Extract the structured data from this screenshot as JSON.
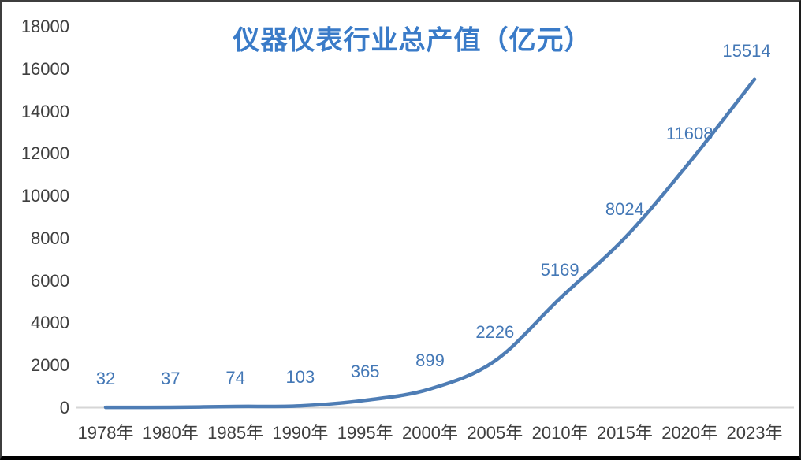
{
  "chart_data": {
    "type": "line",
    "title": "仪器仪表行业总产值（亿元）",
    "categories": [
      "1978年",
      "1980年",
      "1985年",
      "1990年",
      "1995年",
      "2000年",
      "2005年",
      "2010年",
      "2015年",
      "2020年",
      "2023年"
    ],
    "values": [
      32,
      37,
      74,
      103,
      365,
      899,
      2226,
      5169,
      8024,
      11608,
      15514
    ],
    "data_labels": [
      "32",
      "37",
      "74",
      "103",
      "365",
      "899",
      "2226",
      "5169",
      "8024",
      "11608",
      "15514"
    ],
    "y_ticks": [
      0,
      2000,
      4000,
      6000,
      8000,
      10000,
      12000,
      14000,
      16000,
      18000
    ],
    "ylim": [
      0,
      18000
    ],
    "grid": false,
    "legend": "none",
    "smoothed": true,
    "colors": {
      "line": "#4E7DB5",
      "data_label": "#4478B6",
      "title": "#3A7BC8",
      "axis_text": "#3F3F3F",
      "axis_line": "#D6D6D6"
    }
  }
}
